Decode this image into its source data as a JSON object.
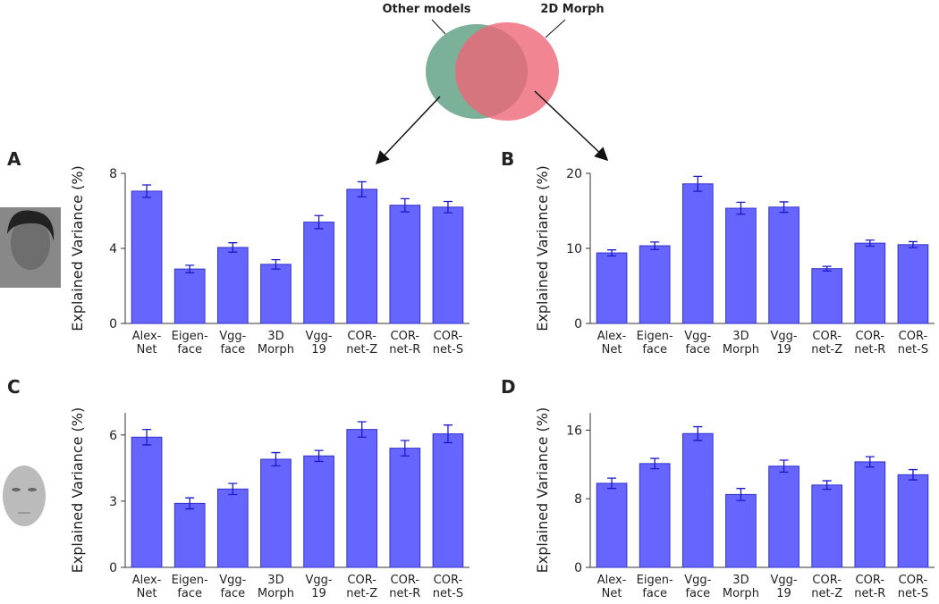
{
  "venn": {
    "left": "Other models",
    "right": "2D Morph"
  },
  "chart_data": [
    {
      "type": "bar",
      "panel": "A",
      "ylabel": "Explained Variance (%)",
      "categories": [
        "Alex-\nNet",
        "Eigen-\nface",
        "Vgg-\nface",
        "3D\nMorph",
        "Vgg-\n19",
        "COR-\nnet-Z",
        "COR-\nnet-R",
        "COR-\nnet-S"
      ],
      "values": [
        7.05,
        2.9,
        4.05,
        3.15,
        5.4,
        7.15,
        6.3,
        6.2
      ],
      "errors": [
        0.33,
        0.2,
        0.25,
        0.25,
        0.35,
        0.4,
        0.35,
        0.3
      ],
      "color": "#6666ff",
      "ylim": [
        0,
        8
      ],
      "yticks": [
        0,
        4,
        8
      ]
    },
    {
      "type": "bar",
      "panel": "B",
      "ylabel": "Explained Variance (%)",
      "categories": [
        "Alex-\nNet",
        "Eigen-\nface",
        "Vgg-\nface",
        "3D\nMorph",
        "Vgg-\n19",
        "COR-\nnet-Z",
        "COR-\nnet-R",
        "COR-\nnet-S"
      ],
      "values": [
        9.4,
        10.35,
        18.6,
        15.35,
        15.5,
        7.3,
        10.7,
        10.5
      ],
      "errors": [
        0.4,
        0.5,
        1.0,
        0.8,
        0.7,
        0.3,
        0.4,
        0.4
      ],
      "color": "#6666ff",
      "ylim": [
        0,
        20
      ],
      "yticks": [
        0,
        10,
        20
      ]
    },
    {
      "type": "bar",
      "panel": "C",
      "ylabel": "Explained Variance (%)",
      "categories": [
        "Alex-\nNet",
        "Eigen-\nface",
        "Vgg-\nface",
        "3D\nMorph",
        "Vgg-\n19",
        "COR-\nnet-Z",
        "COR-\nnet-R",
        "COR-\nnet-S"
      ],
      "values": [
        5.9,
        2.9,
        3.55,
        4.9,
        5.05,
        6.25,
        5.4,
        6.05
      ],
      "errors": [
        0.35,
        0.25,
        0.25,
        0.3,
        0.25,
        0.35,
        0.35,
        0.4
      ],
      "color": "#6666ff",
      "ylim": [
        0,
        7
      ],
      "yticks": [
        0,
        3,
        6
      ]
    },
    {
      "type": "bar",
      "panel": "D",
      "ylabel": "Explained Variance (%)",
      "categories": [
        "Alex-\nNet",
        "Eigen-\nface",
        "Vgg-\nface",
        "3D\nMorph",
        "Vgg-\n19",
        "COR-\nnet-Z",
        "COR-\nnet-R",
        "COR-\nnet-S"
      ],
      "values": [
        9.8,
        12.1,
        15.6,
        8.5,
        11.8,
        9.6,
        12.3,
        10.8
      ],
      "errors": [
        0.6,
        0.6,
        0.8,
        0.7,
        0.7,
        0.5,
        0.6,
        0.6
      ],
      "color": "#6666ff",
      "ylim": [
        0,
        18
      ],
      "yticks": [
        0,
        8,
        16
      ]
    }
  ]
}
